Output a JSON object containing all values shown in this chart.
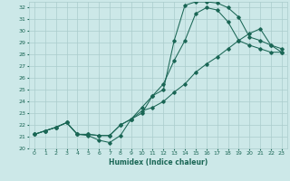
{
  "xlabel": "Humidex (Indice chaleur)",
  "ylabel": "",
  "bg_color": "#cce8e8",
  "grid_color": "#aacccc",
  "line_color": "#1a6655",
  "xlim": [
    -0.5,
    23.5
  ],
  "ylim": [
    20,
    32.5
  ],
  "yticks": [
    20,
    21,
    22,
    23,
    24,
    25,
    26,
    27,
    28,
    29,
    30,
    31,
    32
  ],
  "xticks": [
    0,
    1,
    2,
    3,
    4,
    5,
    6,
    7,
    8,
    9,
    10,
    11,
    12,
    13,
    14,
    15,
    16,
    17,
    18,
    19,
    20,
    21,
    22,
    23
  ],
  "xs1": [
    0,
    1,
    2,
    3,
    4,
    5,
    6,
    7,
    8,
    9,
    10,
    11,
    12,
    13,
    14,
    15,
    16,
    17,
    18,
    19,
    20,
    21,
    22,
    23
  ],
  "ys1": [
    21.2,
    21.5,
    21.8,
    22.2,
    21.2,
    21.1,
    20.7,
    20.5,
    21.1,
    22.5,
    23.0,
    24.5,
    25.0,
    29.2,
    32.2,
    32.5,
    32.5,
    32.4,
    32.0,
    31.2,
    29.5,
    29.2,
    28.8,
    28.5
  ],
  "xs2": [
    0,
    1,
    2,
    3,
    4,
    5,
    6,
    7,
    8,
    9,
    10,
    11,
    12,
    13,
    14,
    15,
    16,
    17,
    18,
    19,
    20,
    21,
    22,
    23
  ],
  "ys2": [
    21.2,
    21.5,
    21.8,
    22.2,
    21.2,
    21.2,
    21.1,
    21.1,
    22.0,
    22.5,
    23.5,
    24.5,
    25.5,
    27.5,
    29.2,
    31.5,
    32.0,
    31.8,
    30.8,
    29.2,
    28.8,
    28.5,
    28.2,
    28.2
  ],
  "xs3": [
    0,
    1,
    2,
    3,
    4,
    5,
    6,
    7,
    8,
    9,
    10,
    11,
    12,
    13,
    14,
    15,
    16,
    17,
    18,
    19,
    20,
    21,
    22,
    23
  ],
  "ys3": [
    21.2,
    21.5,
    21.8,
    22.2,
    21.2,
    21.2,
    21.1,
    21.1,
    22.0,
    22.5,
    23.2,
    23.5,
    24.0,
    24.8,
    25.5,
    26.5,
    27.2,
    27.8,
    28.5,
    29.2,
    29.8,
    30.2,
    28.8,
    28.2
  ]
}
